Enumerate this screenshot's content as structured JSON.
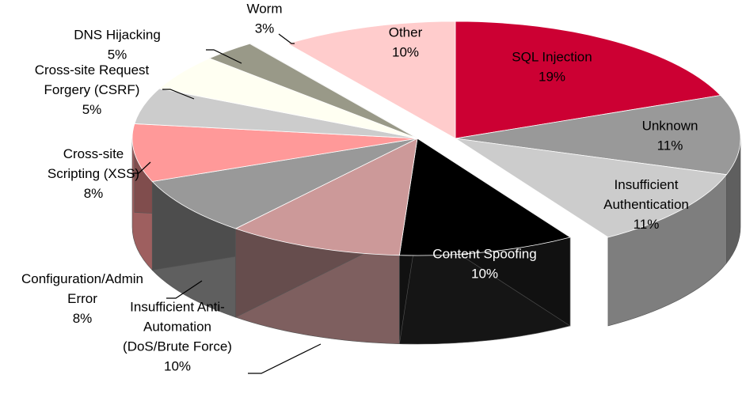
{
  "chart_data": {
    "type": "pie",
    "title": "",
    "categories": [
      "SQL Injection",
      "Unknown",
      "Insufficient Authentication",
      "Content Spoofing",
      "Insufficient Anti-Automation (DoS/Brute Force)",
      "Configuration/Admin Error",
      "Cross-site Scripting (XSS)",
      "Cross-site Request Forgery (CSRF)",
      "DNS Hijacking",
      "Worm",
      "Other"
    ],
    "values": [
      19,
      11,
      11,
      10,
      10,
      8,
      8,
      5,
      5,
      3,
      10
    ],
    "colors": [
      "#cc0033",
      "#999999",
      "#cccccc",
      "#000000",
      "#cc9999",
      "#999999",
      "#ff9999",
      "#cccccc",
      "#fffff2",
      "#999988",
      "#ffcccc"
    ],
    "data_labels": [
      {
        "lines": [
          "SQL Injection",
          "19%"
        ],
        "color": "#000000"
      },
      {
        "lines": [
          "Unknown",
          "11%"
        ],
        "color": "#000000"
      },
      {
        "lines": [
          "Insufficient",
          "Authentication",
          "11%"
        ],
        "color": "#000000"
      },
      {
        "lines": [
          "Content Spoofing",
          "10%"
        ],
        "color": "#ffffff"
      },
      {
        "lines": [
          "Insufficient Anti-",
          "Automation",
          "(DoS/Brute Force)",
          "10%"
        ],
        "color": "#000000"
      },
      {
        "lines": [
          "Configuration/Admin",
          "Error",
          "8%"
        ],
        "color": "#000000"
      },
      {
        "lines": [
          "Cross-site",
          "Scripting (XSS)",
          "8%"
        ],
        "color": "#000000"
      },
      {
        "lines": [
          "Cross-site Request",
          "Forgery (CSRF)",
          "5%"
        ],
        "color": "#000000"
      },
      {
        "lines": [
          "DNS Hijacking",
          "5%"
        ],
        "color": "#000000"
      },
      {
        "lines": [
          "Worm",
          "3%"
        ],
        "color": "#000000"
      },
      {
        "lines": [
          "Other",
          "10%"
        ],
        "color": "#000000"
      }
    ],
    "style": "3d-exploded-pie",
    "legend": "none"
  }
}
